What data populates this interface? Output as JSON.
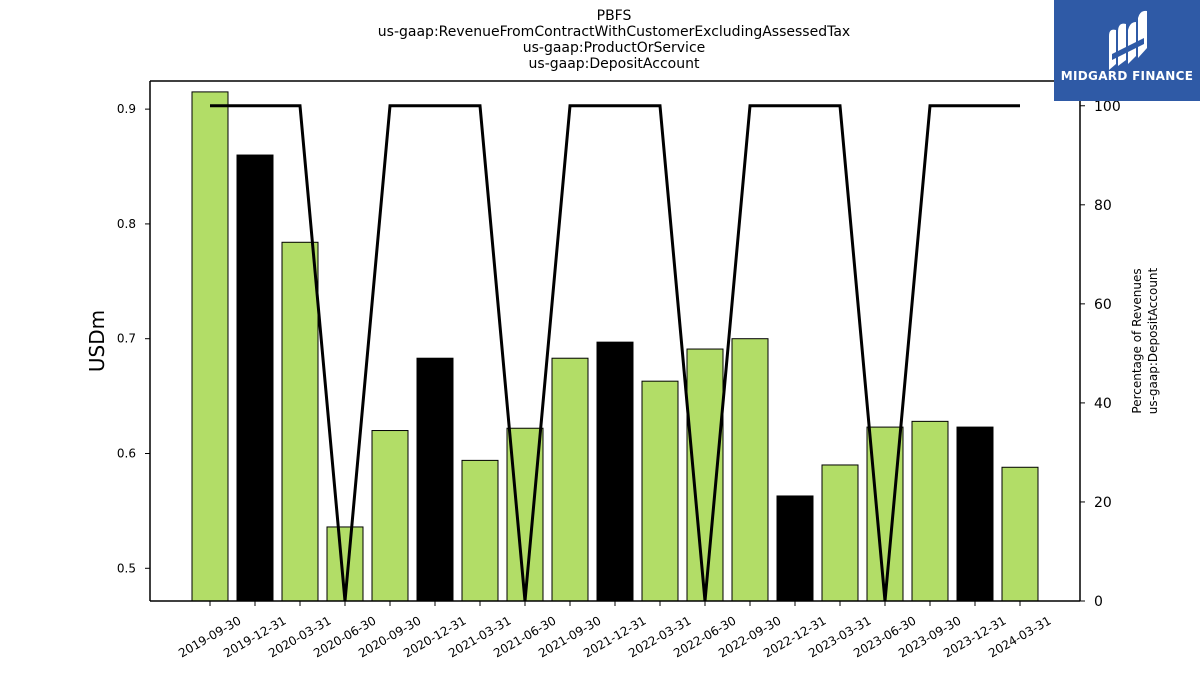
{
  "chart_data": {
    "type": "bar",
    "title_lines": [
      "PBFS",
      "us-gaap:RevenueFromContractWithCustomerExcludingAssessedTax",
      "us-gaap:ProductOrService",
      "us-gaap:DepositAccount"
    ],
    "ylabel": "USDm",
    "y2label_lines": [
      "Percentage of Revenues",
      "us-gaap:DepositAccount"
    ],
    "categories": [
      "2019-09-30",
      "2019-12-31",
      "2020-03-31",
      "2020-06-30",
      "2020-09-30",
      "2020-12-31",
      "2021-03-31",
      "2021-06-30",
      "2021-09-30",
      "2021-12-31",
      "2022-03-31",
      "2022-06-30",
      "2022-09-30",
      "2022-12-31",
      "2023-03-31",
      "2023-06-30",
      "2023-09-30",
      "2023-12-31",
      "2024-03-31"
    ],
    "values": [
      0.915,
      0.86,
      0.784,
      0.536,
      0.62,
      0.683,
      0.594,
      0.622,
      0.683,
      0.697,
      0.663,
      0.691,
      0.7,
      0.563,
      0.59,
      0.623,
      0.628,
      0.623,
      0.588
    ],
    "bar_colors": [
      "#b2dd67",
      "#000000",
      "#b2dd67",
      "#b2dd67",
      "#b2dd67",
      "#000000",
      "#b2dd67",
      "#b2dd67",
      "#b2dd67",
      "#000000",
      "#b2dd67",
      "#b2dd67",
      "#b2dd67",
      "#000000",
      "#b2dd67",
      "#b2dd67",
      "#b2dd67",
      "#000000",
      "#b2dd67"
    ],
    "line_values": [
      100,
      100,
      100,
      0,
      100,
      100,
      100,
      0,
      100,
      100,
      100,
      0,
      100,
      100,
      100,
      0,
      100,
      100,
      100
    ],
    "ylim": [
      0.4715,
      0.9245
    ],
    "yticks": [
      0.5,
      0.6,
      0.7,
      0.8,
      0.9
    ],
    "y2lim": [
      0,
      105
    ],
    "y2ticks": [
      0,
      20,
      40,
      60,
      80,
      100
    ],
    "grid": false,
    "colors": {
      "green": "#b2dd67",
      "black": "#000000",
      "line": "#000000"
    }
  },
  "logo": {
    "text": "MIDGARD FINANCE",
    "background": "#2f5aa6"
  }
}
